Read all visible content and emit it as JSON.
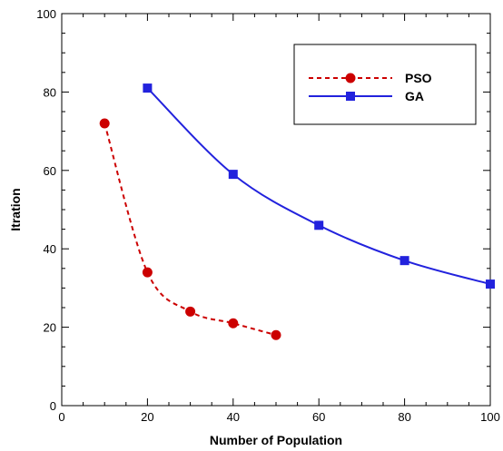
{
  "chart_data": {
    "type": "line",
    "title": "",
    "xlabel": "Number of Population",
    "ylabel": "Itration",
    "xlim": [
      0,
      100
    ],
    "ylim": [
      0,
      100
    ],
    "x_ticks": [
      "0",
      "20",
      "40",
      "60",
      "80",
      "100"
    ],
    "y_ticks": [
      "0",
      "20",
      "40",
      "60",
      "80",
      "100"
    ],
    "grid": false,
    "legend": {
      "placement": "top-right",
      "entries": [
        "PSO",
        "GA"
      ]
    },
    "series": [
      {
        "name": "PSO",
        "color": "#cc0000",
        "line_style": "dashed",
        "marker": "circle",
        "x": [
          10,
          20,
          30,
          40,
          50
        ],
        "y": [
          72,
          34,
          24,
          21,
          18
        ]
      },
      {
        "name": "GA",
        "color": "#2222dd",
        "line_style": "solid",
        "marker": "square",
        "x": [
          20,
          40,
          60,
          80,
          100
        ],
        "y": [
          81,
          59,
          46,
          37,
          31
        ]
      }
    ]
  }
}
